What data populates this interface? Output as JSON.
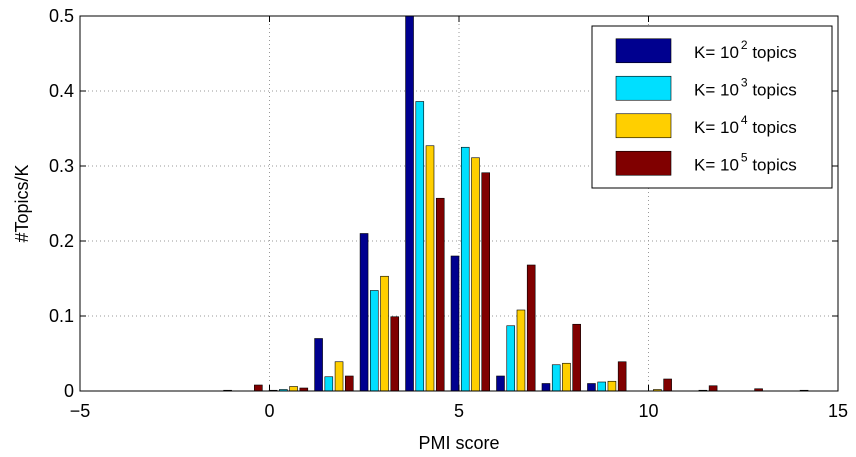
{
  "chart_data": {
    "type": "bar",
    "title": "",
    "xlabel": "PMI score",
    "ylabel": "#Topics/K",
    "xlim": [
      -5,
      15
    ],
    "ylim": [
      0,
      0.5
    ],
    "xticks": [
      -5,
      0,
      5,
      10,
      15
    ],
    "yticks": [
      0,
      0.1,
      0.2,
      0.3,
      0.4,
      0.5
    ],
    "xtick_labels": [
      "−5",
      "0",
      "5",
      "10",
      "15"
    ],
    "ytick_labels": [
      "0",
      "0.1",
      "0.2",
      "0.3",
      "0.4",
      "0.5"
    ],
    "grid": true,
    "legend_position": "top-right",
    "categories": [
      -3.1,
      -1.9,
      -0.7,
      0.5,
      1.7,
      2.9,
      4.1,
      5.3,
      6.5,
      7.7,
      8.9,
      10.1,
      11.3,
      12.5,
      13.7
    ],
    "series": [
      {
        "name_prefix": "K= 10",
        "name_exp": "2",
        "name_suffix": " topics",
        "color": "#00008f",
        "values": [
          0,
          0,
          0.001,
          0.001,
          0.07,
          0.21,
          0.5,
          0.18,
          0.02,
          0.01,
          0.01,
          0,
          0,
          0,
          0
        ]
      },
      {
        "name_prefix": "K= 10",
        "name_exp": "3",
        "name_suffix": " topics",
        "color": "#00dfff",
        "values": [
          0,
          0,
          0,
          0.002,
          0.019,
          0.134,
          0.386,
          0.325,
          0.087,
          0.035,
          0.012,
          0,
          0,
          0,
          0
        ]
      },
      {
        "name_prefix": "K= 10",
        "name_exp": "4",
        "name_suffix": " topics",
        "color": "#ffcf00",
        "values": [
          0,
          0,
          0,
          0.006,
          0.039,
          0.153,
          0.327,
          0.311,
          0.108,
          0.037,
          0.013,
          0.002,
          0.001,
          0,
          0
        ]
      },
      {
        "name_prefix": "K= 10",
        "name_exp": "5",
        "name_suffix": " topics",
        "color": "#800000",
        "values": [
          0,
          0,
          0.008,
          0.004,
          0.02,
          0.099,
          0.257,
          0.291,
          0.168,
          0.089,
          0.039,
          0.016,
          0.007,
          0.003,
          0.001
        ]
      }
    ]
  }
}
